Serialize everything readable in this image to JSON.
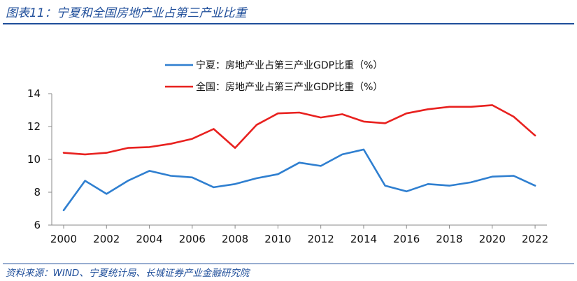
{
  "figure": {
    "title": "图表11：宁夏和全国房地产业占第三产业比重",
    "source": "资料来源：WIND、宁夏统计局、长城证券产业金融研究院"
  },
  "chart_data": {
    "type": "line",
    "x": [
      2000,
      2001,
      2002,
      2003,
      2004,
      2005,
      2006,
      2007,
      2008,
      2009,
      2010,
      2011,
      2012,
      2013,
      2014,
      2015,
      2016,
      2017,
      2018,
      2019,
      2020,
      2021,
      2022
    ],
    "x_ticks": [
      "2000",
      "2002",
      "2004",
      "2006",
      "2008",
      "2010",
      "2012",
      "2014",
      "2016",
      "2018",
      "2020",
      "2022"
    ],
    "y_ticks": [
      "6",
      "8",
      "10",
      "12",
      "14"
    ],
    "ylim": [
      6,
      14
    ],
    "grid": false,
    "legend_position": "top-center",
    "series": [
      {
        "name": "宁夏：房地产业占第三产业GDP比重（%）",
        "color": "#2f7fd0",
        "values": [
          6.9,
          8.7,
          7.9,
          8.7,
          9.3,
          9.0,
          8.9,
          8.3,
          8.5,
          8.85,
          9.1,
          9.8,
          9.6,
          10.3,
          10.6,
          8.4,
          8.05,
          8.5,
          8.4,
          8.6,
          8.95,
          9.0,
          8.4
        ]
      },
      {
        "name": "全国：房地产业占第三产业GDP比重（%）",
        "color": "#e8211f",
        "values": [
          10.4,
          10.3,
          10.4,
          10.7,
          10.75,
          10.95,
          11.25,
          11.85,
          10.7,
          12.1,
          12.8,
          12.85,
          12.55,
          12.75,
          12.3,
          12.2,
          12.8,
          13.05,
          13.2,
          13.2,
          13.3,
          12.6,
          11.45
        ]
      }
    ]
  }
}
